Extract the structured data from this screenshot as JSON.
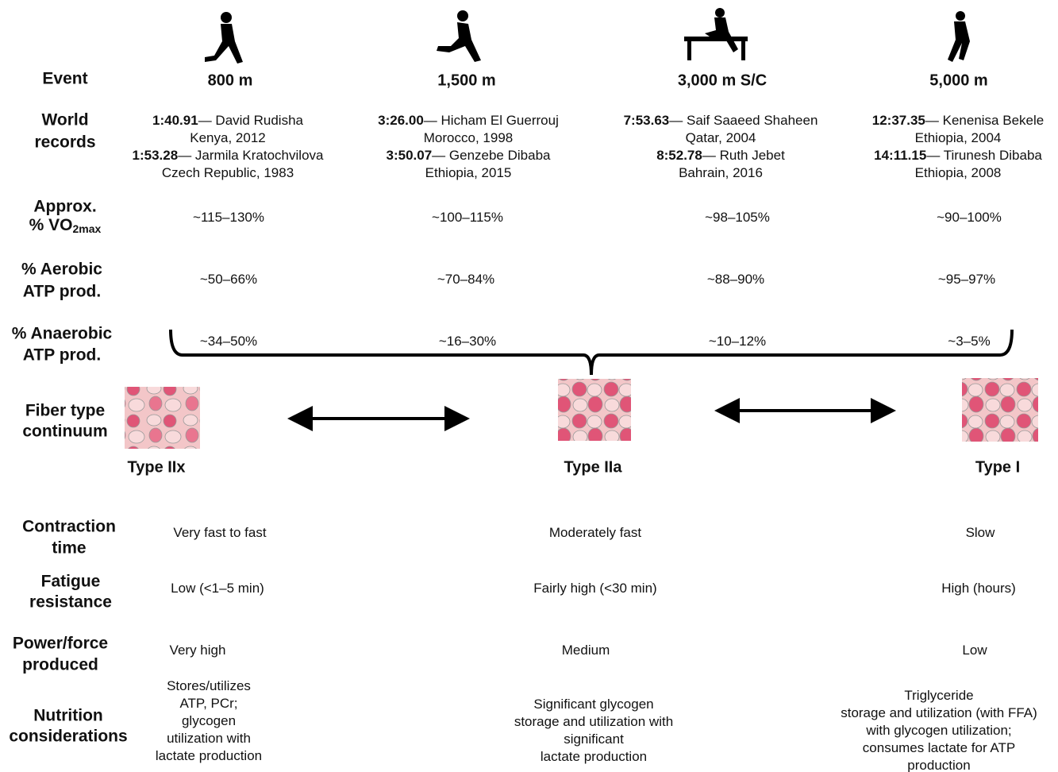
{
  "row_labels": [
    {
      "lines": [
        "Event"
      ]
    },
    {
      "lines": [
        "World",
        "records"
      ]
    },
    {
      "lines": [
        "Approx.",
        "% VO"
      ],
      "sub": "2max"
    },
    {
      "lines": [
        "% Aerobic",
        "ATP prod."
      ]
    },
    {
      "lines": [
        "% Anaerobic",
        "ATP prod."
      ]
    },
    {
      "lines": [
        "Fiber type",
        "continuum"
      ]
    },
    {
      "lines": [
        "Contraction",
        "time"
      ]
    },
    {
      "lines": [
        "Fatigue",
        "resistance"
      ]
    },
    {
      "lines": [
        "Power/force",
        "produced"
      ]
    },
    {
      "lines": [
        "Nutrition",
        "considerations"
      ]
    }
  ],
  "events": [
    {
      "name": "800 m",
      "records": [
        {
          "time": "1:40.91",
          "text": "— David Rudisha",
          "place": "Kenya, 2012"
        },
        {
          "time": "1:53.28",
          "text": "— Jarmila Kratochvilova",
          "place": "Czech Republic, 1983"
        }
      ],
      "vo2max": "~115–130%",
      "aerobic": "~50–66%",
      "anaerobic": "~34–50%"
    },
    {
      "name": "1,500 m",
      "records": [
        {
          "time": "3:26.00",
          "text": "— Hicham El Guerrouj",
          "place": "Morocco, 1998"
        },
        {
          "time": "3:50.07",
          "text": "— Genzebe Dibaba",
          "place": "Ethiopia, 2015"
        }
      ],
      "vo2max": "~100–115%",
      "aerobic": "~70–84%",
      "anaerobic": "~16–30%"
    },
    {
      "name": "3,000 m  S/C",
      "records": [
        {
          "time": "7:53.63",
          "text": "— Saif Saaeed Shaheen",
          "place": "Qatar, 2004"
        },
        {
          "time": "8:52.78",
          "text": "— Ruth Jebet",
          "place": "Bahrain, 2016"
        }
      ],
      "vo2max": "~98–105%",
      "aerobic": "~88–90%",
      "anaerobic": "~10–12%"
    },
    {
      "name": "5,000 m",
      "records": [
        {
          "time": "12:37.35",
          "text": "— Kenenisa Bekele",
          "place": "Ethiopia, 2004"
        },
        {
          "time": "14:11.15",
          "text": "— Tirunesh Dibaba",
          "place": "Ethiopia, 2008"
        }
      ],
      "vo2max": "~90–100%",
      "aerobic": "~95–97%",
      "anaerobic": "~3–5%"
    }
  ],
  "fibers": [
    {
      "name": "Type IIx",
      "contraction": "Very  fast to fast",
      "fatigue": "Low (<1–5 min)",
      "power": "Very high",
      "nutrition": [
        "Stores/utilizes",
        "ATP, PCr;",
        "glycogen",
        "utilization with",
        "lactate production"
      ]
    },
    {
      "name": "Type IIa",
      "contraction": "Moderately  fast",
      "fatigue": "Fairly high (<30 min)",
      "power": "Medium",
      "nutrition": [
        "Significant glycogen",
        "storage and utilization with",
        "significant",
        "lactate production"
      ]
    },
    {
      "name": "Type I",
      "contraction": "Slow",
      "fatigue": "High (hours)",
      "power": "Low",
      "nutrition": [
        "Triglyceride",
        "storage and utilization (with FFA)",
        "with glycogen utilization;",
        "consumes lactate for ATP",
        "production"
      ]
    }
  ]
}
